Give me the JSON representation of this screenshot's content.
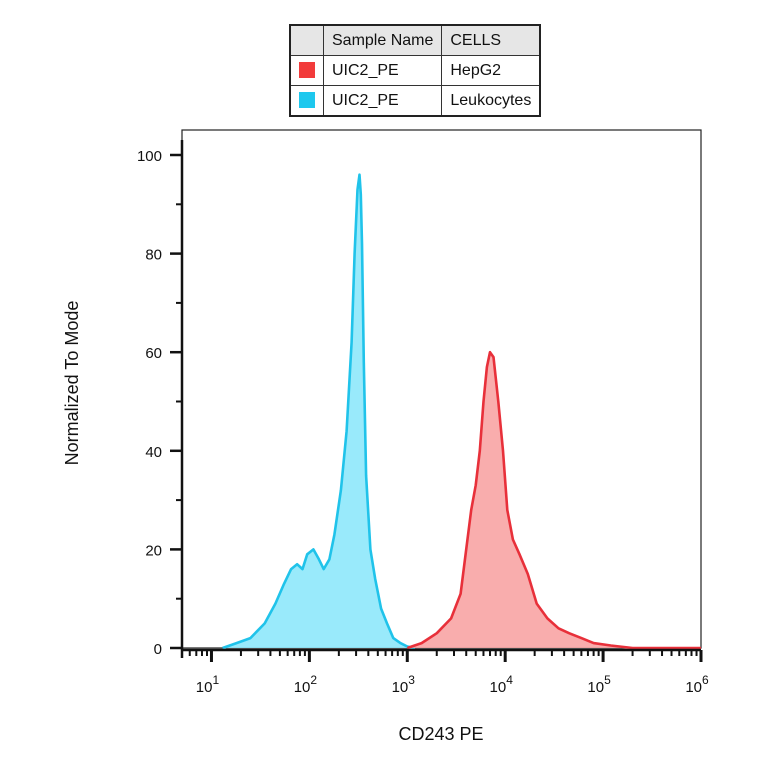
{
  "legend": {
    "headers": [
      "Sample Name",
      "CELLS"
    ],
    "rows": [
      {
        "sample": "UIC2_PE",
        "cells": "HepG2",
        "color": "#f23b3b"
      },
      {
        "sample": "UIC2_PE",
        "cells": "Leukocytes",
        "color": "#1ec8ee"
      }
    ]
  },
  "chart_data": {
    "type": "area",
    "xlabel": "CD243 PE",
    "ylabel": "Normalized To Mode",
    "x_scale": "log",
    "xlim": [
      5,
      1000000
    ],
    "ylim": [
      0,
      105
    ],
    "x_ticks": [
      {
        "value": 10,
        "base": "10",
        "exp": "1"
      },
      {
        "value": 100,
        "base": "10",
        "exp": "2"
      },
      {
        "value": 1000,
        "base": "10",
        "exp": "3"
      },
      {
        "value": 10000,
        "base": "10",
        "exp": "4"
      },
      {
        "value": 100000,
        "base": "10",
        "exp": "5"
      },
      {
        "value": 1000000,
        "base": "10",
        "exp": "6"
      }
    ],
    "y_ticks": [
      0,
      20,
      40,
      60,
      80,
      100
    ],
    "series": [
      {
        "name": "Leukocytes",
        "stroke": "#20c3ea",
        "fill": "#8ee8fb",
        "x": [
          13,
          18,
          25,
          35,
          45,
          55,
          65,
          75,
          85,
          95,
          110,
          125,
          140,
          160,
          180,
          210,
          240,
          270,
          290,
          310,
          325,
          335,
          345,
          360,
          380,
          420,
          470,
          540,
          620,
          720,
          850,
          1000,
          1200
        ],
        "y": [
          0,
          1,
          2,
          5,
          9,
          13,
          16,
          17,
          16,
          19,
          20,
          18,
          16,
          18,
          23,
          32,
          44,
          62,
          80,
          93,
          96,
          92,
          82,
          58,
          35,
          20,
          14,
          8,
          5,
          2,
          1,
          0.3,
          0
        ]
      },
      {
        "name": "HepG2",
        "stroke": "#e8303a",
        "fill": "#f8a4a4",
        "x": [
          1000,
          1400,
          2000,
          2800,
          3500,
          4000,
          4500,
          5000,
          5500,
          6000,
          6500,
          7000,
          7600,
          8500,
          9500,
          10500,
          12000,
          14000,
          17000,
          21000,
          27000,
          35000,
          45000,
          60000,
          80000,
          120000,
          200000,
          1000000
        ],
        "y": [
          0,
          1,
          3,
          6,
          11,
          20,
          28,
          33,
          40,
          50,
          57,
          60,
          59,
          50,
          40,
          28,
          22,
          19,
          15,
          9,
          6,
          4,
          3,
          2,
          1,
          0.5,
          0,
          0
        ]
      }
    ],
    "grid": false
  }
}
